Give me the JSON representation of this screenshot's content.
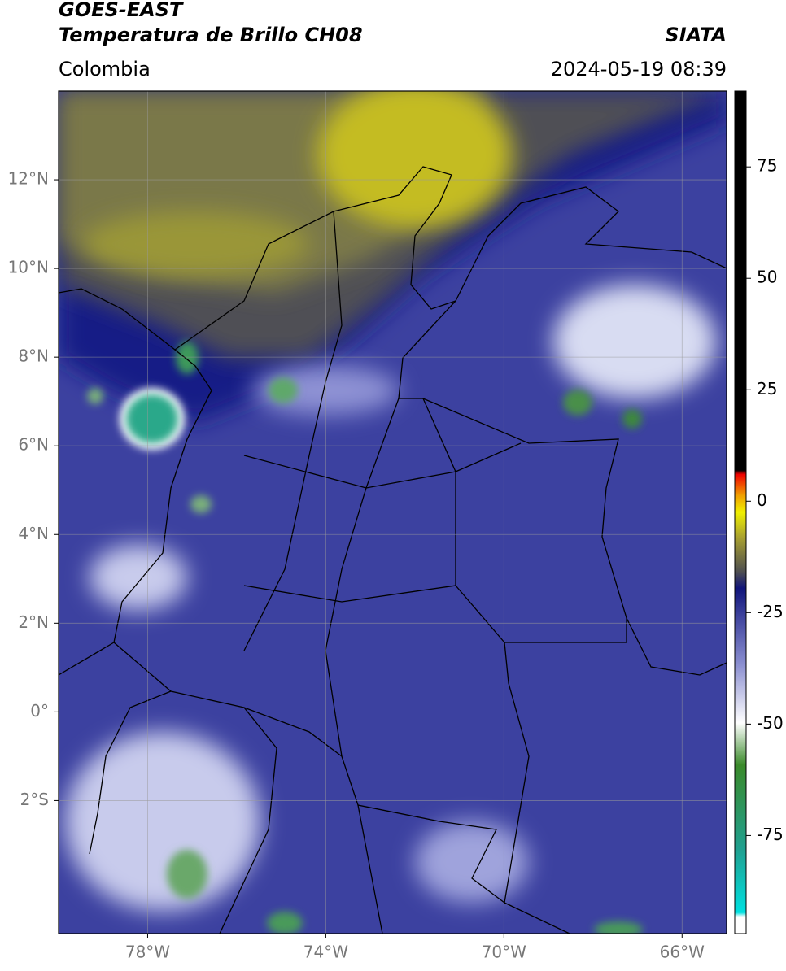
{
  "header": {
    "line1": "GOES-EAST",
    "line2": "Temperatura de Brillo CH08",
    "region": "Colombia",
    "source": "SIATA",
    "datetime": "2024-05-19 08:39"
  },
  "map": {
    "xlim": [
      -80,
      -65
    ],
    "ylim": [
      -5,
      14
    ],
    "xticks": [
      {
        "value": -78,
        "label": "78°W"
      },
      {
        "value": -74,
        "label": "74°W"
      },
      {
        "value": -70,
        "label": "70°W"
      },
      {
        "value": -66,
        "label": "66°W"
      }
    ],
    "yticks": [
      {
        "value": 12,
        "label": "12°N"
      },
      {
        "value": 10,
        "label": "10°N"
      },
      {
        "value": 8,
        "label": "8°N"
      },
      {
        "value": 6,
        "label": "6°N"
      },
      {
        "value": 4,
        "label": "4°N"
      },
      {
        "value": 2,
        "label": "2°N"
      },
      {
        "value": 0,
        "label": "0°"
      },
      {
        "value": -2,
        "label": "2°S"
      }
    ],
    "grid": true
  },
  "colorbar": {
    "lim": [
      -97,
      92
    ],
    "ticks": [
      75,
      50,
      25,
      0,
      -25,
      -50,
      -75
    ]
  }
}
